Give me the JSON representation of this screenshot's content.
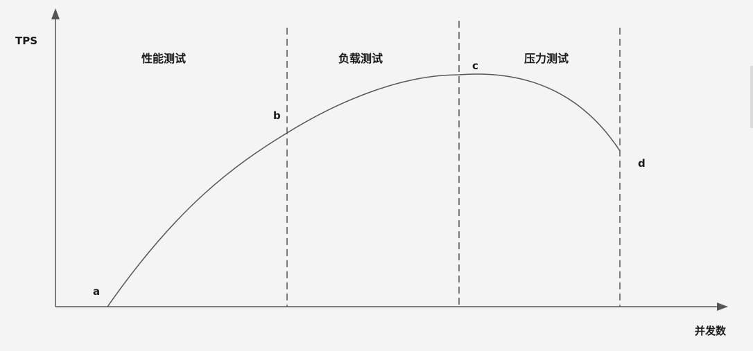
{
  "axes": {
    "y_label": "TPS",
    "x_label": "并发数"
  },
  "zones": [
    {
      "label": "性能测试"
    },
    {
      "label": "负载测试"
    },
    {
      "label": "压力测试"
    }
  ],
  "points": [
    {
      "label": "a"
    },
    {
      "label": "b"
    },
    {
      "label": "c"
    },
    {
      "label": "d"
    }
  ],
  "colors": {
    "line": "#555555",
    "text": "#1a1a1a",
    "background": "#f4f4f4"
  }
}
